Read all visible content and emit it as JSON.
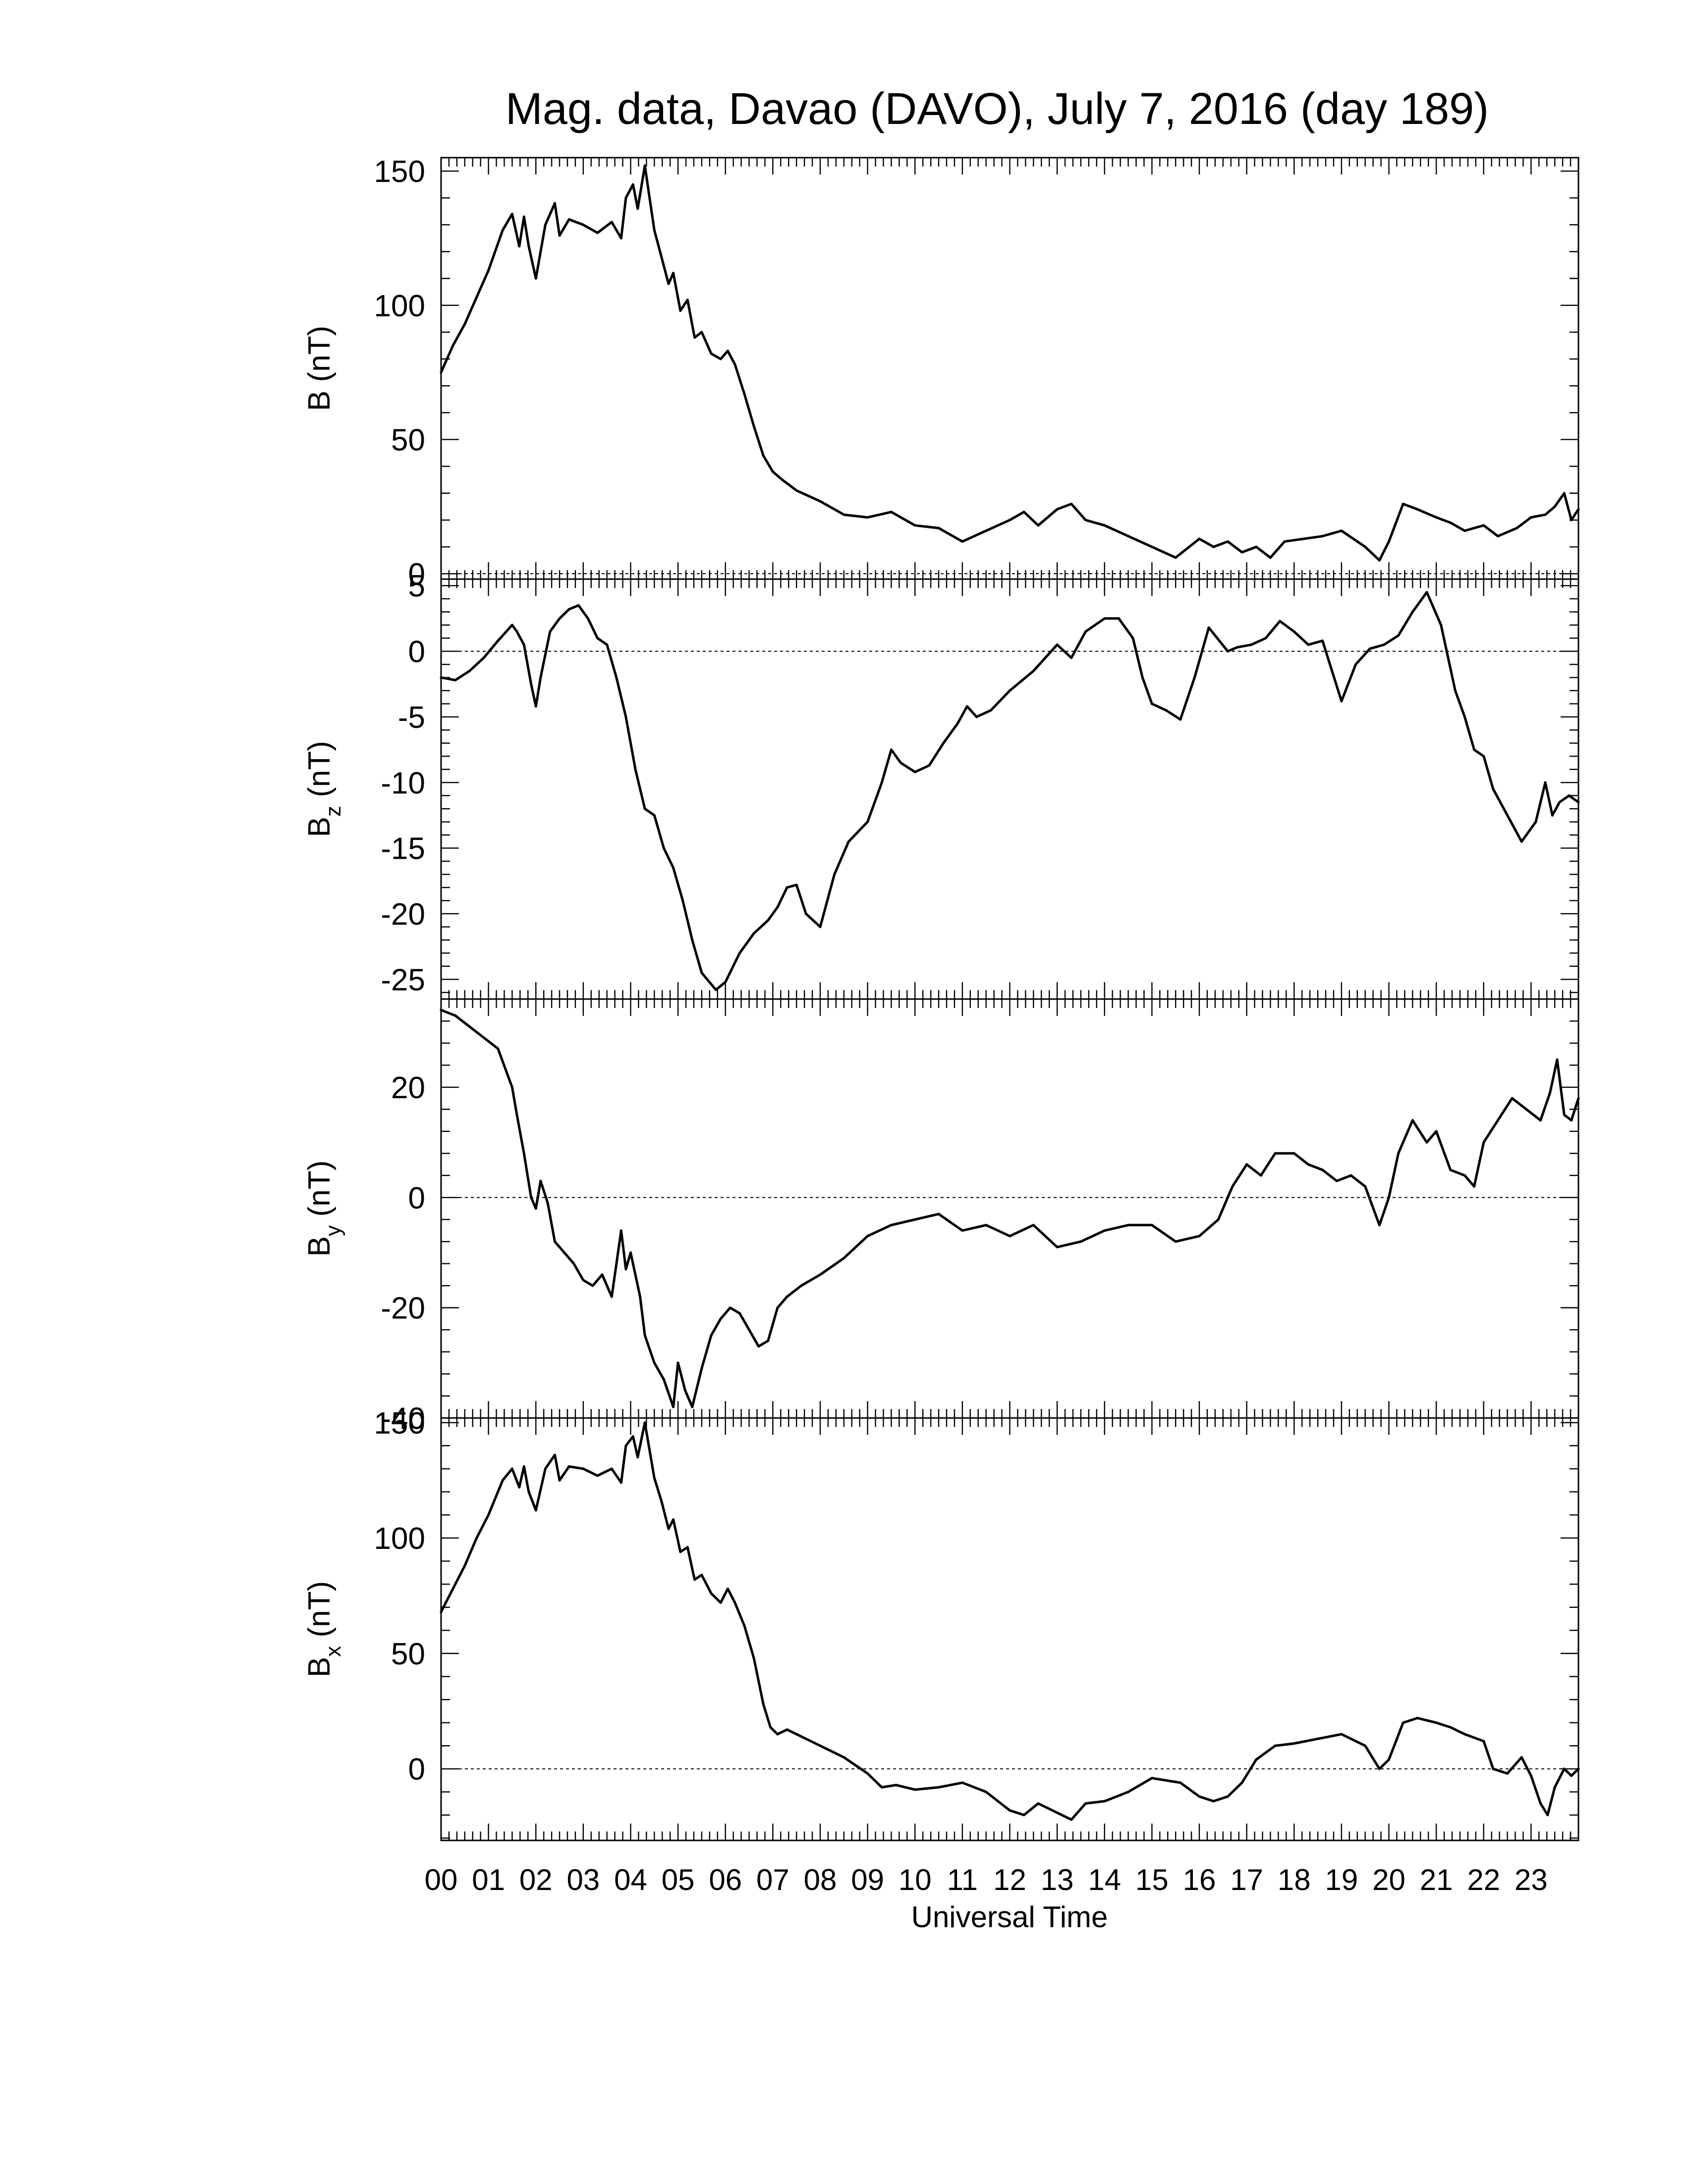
{
  "chart_data": {
    "type": "line",
    "title": "Mag. data, Davao (DAVO), July 7, 2016 (day 189)",
    "xlabel": "Universal Time",
    "xlim": [
      0,
      24
    ],
    "x_tick_labels": [
      "00",
      "01",
      "02",
      "03",
      "04",
      "05",
      "06",
      "07",
      "08",
      "09",
      "10",
      "11",
      "12",
      "13",
      "14",
      "15",
      "16",
      "17",
      "18",
      "19",
      "20",
      "21",
      "22",
      "23"
    ],
    "grid": false,
    "panels": [
      {
        "id": "B",
        "ylabel": "B (nT)",
        "ylim": [
          -2,
          155
        ],
        "yticks": [
          0,
          50,
          100,
          150
        ],
        "ytick_labels": [
          "0",
          "50",
          "100",
          "150"
        ],
        "zero_line": true,
        "series": [
          {
            "x": [
              0,
              0.25,
              0.5,
              0.75,
              1.0,
              1.3,
              1.5,
              1.65,
              1.75,
              1.85,
              2.0,
              2.2,
              2.4,
              2.5,
              2.7,
              3.0,
              3.3,
              3.6,
              3.8,
              3.9,
              4.05,
              4.15,
              4.3,
              4.5,
              4.65,
              4.8,
              4.9,
              5.05,
              5.2,
              5.35,
              5.5,
              5.7,
              5.9,
              6.05,
              6.2,
              6.4,
              6.6,
              6.8,
              7.0,
              7.2,
              7.5,
              8.0,
              8.5,
              9.0,
              9.5,
              10.0,
              10.5,
              11.0,
              11.5,
              12.0,
              12.3,
              12.6,
              13.0,
              13.3,
              13.6,
              14.0,
              14.5,
              15.0,
              15.5,
              16.0,
              16.3,
              16.6,
              16.9,
              17.2,
              17.5,
              17.8,
              18.2,
              18.6,
              19.0,
              19.5,
              19.8,
              20.0,
              20.3,
              20.6,
              21.0,
              21.3,
              21.6,
              22.0,
              22.3,
              22.7,
              23.0,
              23.3,
              23.5,
              23.7,
              23.85,
              24.0
            ],
            "values": [
              75,
              85,
              93,
              103,
              113,
              128,
              134,
              122,
              133,
              122,
              110,
              130,
              138,
              126,
              132,
              130,
              127,
              131,
              125,
              140,
              145,
              136,
              152,
              128,
              118,
              108,
              112,
              98,
              102,
              88,
              90,
              82,
              80,
              83,
              78,
              67,
              55,
              44,
              38,
              35,
              31,
              27,
              22,
              21,
              23,
              18,
              17,
              12,
              16,
              20,
              23,
              18,
              24,
              26,
              20,
              18,
              14,
              10,
              6,
              13,
              10,
              12,
              8,
              10,
              6,
              12,
              13,
              14,
              16,
              10,
              5,
              12,
              26,
              24,
              21,
              19,
              16,
              18,
              14,
              17,
              21,
              22,
              25,
              30,
              20,
              24
            ]
          }
        ]
      },
      {
        "id": "Bz",
        "ylabel": "B",
        "ylabel_sub": "z",
        "ylabel_unit": "(nT)",
        "ylim": [
          -26.5,
          5.5
        ],
        "yticks": [
          5,
          0,
          -5,
          -10,
          -15,
          -20,
          -25
        ],
        "ytick_labels": [
          "5",
          "0",
          "-5",
          "-10",
          "-15",
          "-20",
          "-25"
        ],
        "zero_line": true,
        "series": [
          {
            "x": [
              0,
              0.3,
              0.6,
              0.9,
              1.2,
              1.5,
              1.6,
              1.75,
              1.9,
              2.0,
              2.1,
              2.3,
              2.5,
              2.7,
              2.9,
              3.1,
              3.3,
              3.5,
              3.7,
              3.9,
              4.1,
              4.3,
              4.5,
              4.7,
              4.9,
              5.1,
              5.3,
              5.5,
              5.8,
              6.0,
              6.3,
              6.6,
              6.9,
              7.1,
              7.3,
              7.5,
              7.7,
              8.0,
              8.3,
              8.6,
              9.0,
              9.3,
              9.5,
              9.7,
              10.0,
              10.3,
              10.6,
              10.9,
              11.1,
              11.3,
              11.6,
              12.0,
              12.5,
              13.0,
              13.3,
              13.6,
              14.0,
              14.3,
              14.6,
              14.8,
              15.0,
              15.3,
              15.6,
              15.9,
              16.2,
              16.6,
              16.8,
              17.1,
              17.4,
              17.7,
              18.0,
              18.3,
              18.6,
              19.0,
              19.3,
              19.6,
              19.9,
              20.2,
              20.5,
              20.8,
              21.1,
              21.4,
              21.6,
              21.8,
              22.0,
              22.2,
              22.5,
              22.8,
              23.1,
              23.3,
              23.45,
              23.6,
              23.8,
              24.0
            ],
            "values": [
              -2,
              -2.2,
              -1.5,
              -0.5,
              0.8,
              2,
              1.5,
              0.5,
              -2.5,
              -4.2,
              -2,
              1.5,
              2.5,
              3.2,
              3.5,
              2.5,
              1,
              0.5,
              -2,
              -5,
              -9,
              -12,
              -12.5,
              -15,
              -16.5,
              -19,
              -22,
              -24.5,
              -25.8,
              -25.2,
              -23,
              -21.5,
              -20.5,
              -19.5,
              -18,
              -17.8,
              -20,
              -21,
              -17,
              -14.5,
              -13,
              -10,
              -7.5,
              -8.5,
              -9.2,
              -8.7,
              -7,
              -5.5,
              -4.2,
              -5,
              -4.5,
              -3,
              -1.5,
              0.5,
              -0.5,
              1.5,
              2.5,
              2.5,
              1,
              -2,
              -4,
              -4.5,
              -5.2,
              -2,
              1.8,
              0,
              0.3,
              0.5,
              1,
              2.3,
              1.5,
              0.5,
              0.8,
              -3.8,
              -1,
              0.2,
              0.5,
              1.2,
              3,
              4.5,
              2,
              -3,
              -5,
              -7.5,
              -8,
              -10.5,
              -12.5,
              -14.5,
              -13,
              -10,
              -12.5,
              -11.5,
              -11,
              -11.5
            ]
          }
        ]
      },
      {
        "id": "By",
        "ylabel": "B",
        "ylabel_sub": "y",
        "ylabel_unit": "(nT)",
        "ylim": [
          -40,
          36
        ],
        "yticks": [
          20,
          0,
          -20,
          -40
        ],
        "ytick_labels": [
          "20",
          "0",
          "-20",
          "-40"
        ],
        "zero_line": true,
        "series": [
          {
            "x": [
              0,
              0.3,
              0.6,
              0.9,
              1.2,
              1.5,
              1.6,
              1.75,
              1.9,
              2.0,
              2.1,
              2.25,
              2.4,
              2.6,
              2.8,
              3.0,
              3.2,
              3.4,
              3.6,
              3.8,
              3.9,
              4.0,
              4.2,
              4.3,
              4.5,
              4.7,
              4.9,
              5.0,
              5.15,
              5.3,
              5.5,
              5.7,
              5.9,
              6.1,
              6.3,
              6.5,
              6.7,
              6.9,
              7.1,
              7.3,
              7.6,
              8.0,
              8.5,
              9.0,
              9.5,
              10.0,
              10.5,
              11.0,
              11.5,
              12.0,
              12.5,
              13.0,
              13.5,
              14.0,
              14.5,
              15.0,
              15.5,
              16.0,
              16.4,
              16.7,
              17.0,
              17.3,
              17.6,
              18.0,
              18.3,
              18.6,
              18.9,
              19.2,
              19.5,
              19.8,
              20.0,
              20.2,
              20.5,
              20.8,
              21.0,
              21.3,
              21.6,
              21.8,
              22.0,
              22.3,
              22.6,
              22.9,
              23.2,
              23.4,
              23.55,
              23.7,
              23.85,
              24.0
            ],
            "values": [
              34,
              33,
              31,
              29,
              27,
              20,
              15,
              8,
              0,
              -2,
              3,
              -1,
              -8,
              -10,
              -12,
              -15,
              -16,
              -14,
              -18,
              -6,
              -13,
              -10,
              -18,
              -25,
              -30,
              -33,
              -38,
              -30,
              -35,
              -38,
              -31,
              -25,
              -22,
              -20,
              -21,
              -24,
              -27,
              -26,
              -20,
              -18,
              -16,
              -14,
              -11,
              -7,
              -5,
              -4,
              -3,
              -6,
              -5,
              -7,
              -5,
              -9,
              -8,
              -6,
              -5,
              -5,
              -8,
              -7,
              -4,
              2,
              6,
              4,
              8,
              8,
              6,
              5,
              3,
              4,
              2,
              -5,
              0,
              8,
              14,
              10,
              12,
              5,
              4,
              2,
              10,
              14,
              18,
              16,
              14,
              19,
              25,
              15,
              14,
              18
            ]
          }
        ]
      },
      {
        "id": "Bx",
        "ylabel": "B",
        "ylabel_sub": "x",
        "ylabel_unit": "(nT)",
        "ylim": [
          -31,
          152
        ],
        "yticks": [
          150,
          100,
          50,
          0
        ],
        "ytick_labels": [
          "150",
          "100",
          "50",
          "0"
        ],
        "zero_line": true,
        "series": [
          {
            "x": [
              0,
              0.25,
              0.5,
              0.75,
              1.0,
              1.3,
              1.5,
              1.65,
              1.75,
              1.85,
              2.0,
              2.2,
              2.4,
              2.5,
              2.7,
              3.0,
              3.3,
              3.6,
              3.8,
              3.9,
              4.05,
              4.15,
              4.3,
              4.5,
              4.65,
              4.8,
              4.9,
              5.05,
              5.2,
              5.35,
              5.5,
              5.7,
              5.9,
              6.05,
              6.2,
              6.4,
              6.6,
              6.8,
              6.95,
              7.1,
              7.3,
              7.5,
              8.0,
              8.5,
              9.0,
              9.3,
              9.6,
              10.0,
              10.5,
              11.0,
              11.5,
              12.0,
              12.3,
              12.6,
              13.0,
              13.3,
              13.6,
              14.0,
              14.5,
              15.0,
              15.3,
              15.6,
              16.0,
              16.3,
              16.6,
              16.9,
              17.2,
              17.6,
              18.0,
              18.5,
              19.0,
              19.5,
              19.8,
              20.0,
              20.3,
              20.6,
              21.0,
              21.3,
              21.6,
              22.0,
              22.2,
              22.5,
              22.8,
              23.0,
              23.2,
              23.35,
              23.5,
              23.7,
              23.85,
              24.0
            ],
            "values": [
              68,
              78,
              88,
              100,
              110,
              125,
              130,
              122,
              131,
              120,
              112,
              130,
              136,
              125,
              131,
              130,
              127,
              130,
              124,
              140,
              144,
              135,
              150,
              126,
              116,
              104,
              108,
              94,
              96,
              82,
              84,
              76,
              72,
              78,
              72,
              62,
              48,
              28,
              18,
              15,
              17,
              15,
              10,
              5,
              -2,
              -8,
              -7,
              -9,
              -8,
              -6,
              -10,
              -18,
              -20,
              -15,
              -19,
              -22,
              -15,
              -14,
              -10,
              -4,
              -5,
              -6,
              -12,
              -14,
              -12,
              -6,
              4,
              10,
              11,
              13,
              15,
              10,
              0,
              4,
              20,
              22,
              20,
              18,
              15,
              12,
              0,
              -2,
              5,
              -3,
              -15,
              -20,
              -8,
              0,
              -3,
              0
            ]
          }
        ]
      }
    ]
  }
}
